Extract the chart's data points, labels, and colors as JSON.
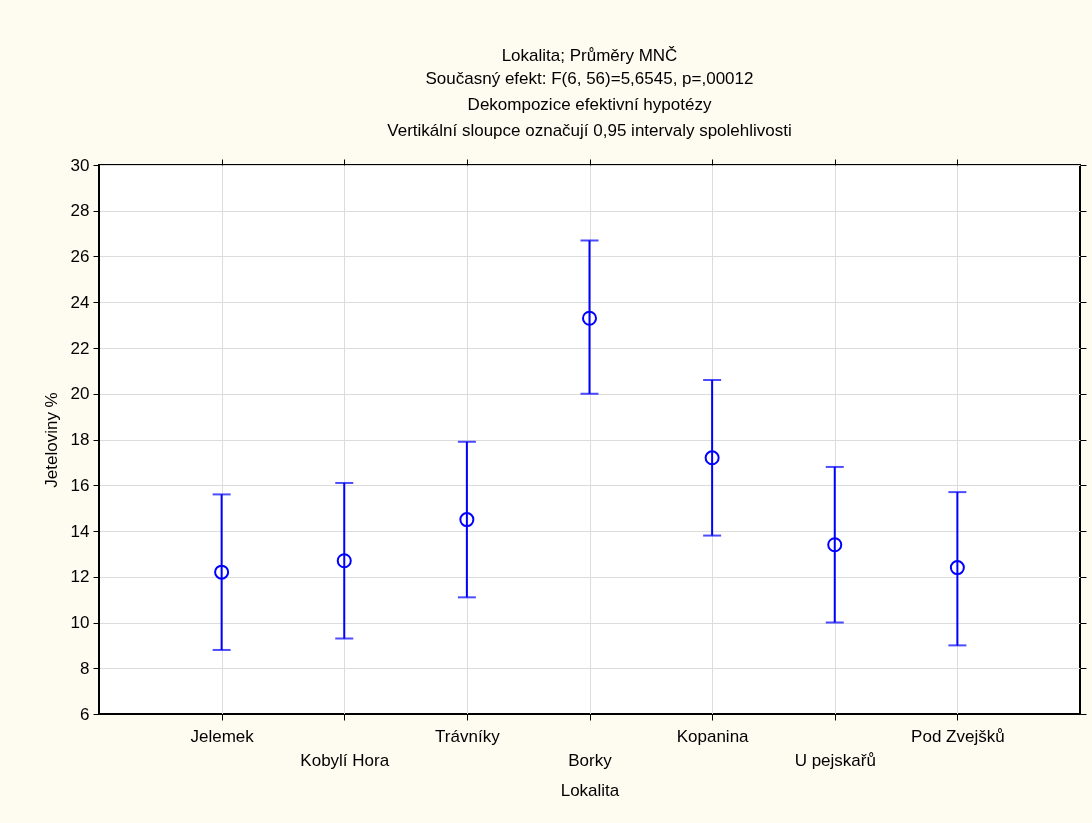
{
  "chart_data": {
    "type": "scatter",
    "title": "Lokalita; Průměry MNČ",
    "subtitle": "Současný efekt: F(6, 56)=5,6545, p=,00012",
    "annotations": [
      "Dekompozice efektivní hypotézy",
      "Vertikální sloupce označují 0,95 intervaly spolehlivosti"
    ],
    "xlabel": "Lokalita",
    "ylabel": "Jeteloviny %",
    "categories": [
      "Jelemek",
      "Kobylí Hora",
      "Trávníky",
      "Borky",
      "Kopanina",
      "U pejskařů",
      "Pod Zvejšků"
    ],
    "series": [
      {
        "color": "#0000ff",
        "values": [
          12.2,
          12.7,
          14.5,
          23.3,
          17.2,
          13.4,
          12.4
        ],
        "errors": [
          [
            8.8,
            15.6
          ],
          [
            9.3,
            16.1
          ],
          [
            11.1,
            17.9
          ],
          [
            20.0,
            26.7
          ],
          [
            13.8,
            20.6
          ],
          [
            10.0,
            16.8
          ],
          [
            9.0,
            15.7
          ]
        ]
      }
    ],
    "ylim": [
      6,
      30
    ],
    "yticks": [
      6,
      8,
      10,
      12,
      14,
      16,
      18,
      20,
      22,
      24,
      26,
      28,
      30
    ],
    "grid": true,
    "marker": "circle"
  }
}
